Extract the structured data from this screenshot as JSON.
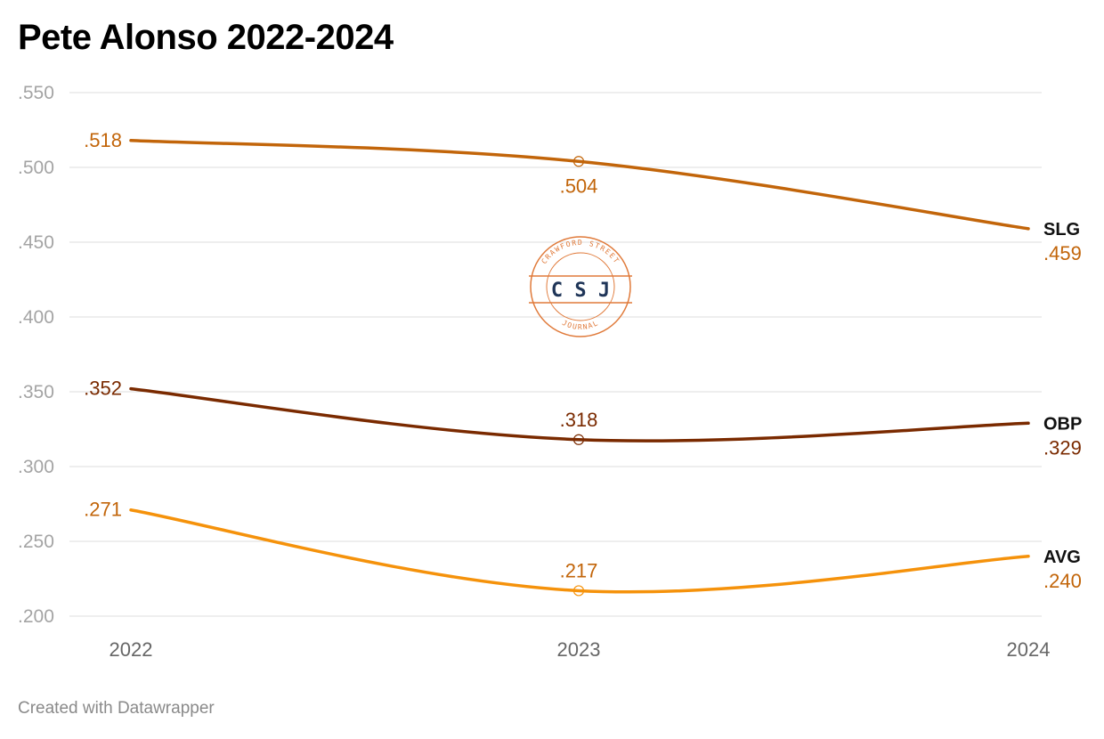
{
  "title": "Pete Alonso 2022-2024",
  "footer": "Created with Datawrapper",
  "watermark": {
    "top_text": "CRAWFORD STREET",
    "center_text": "C S J",
    "bottom_text": "JOURNAL",
    "ring_color": "#e07a3a",
    "text_color": "#1f3558"
  },
  "chart_data": {
    "type": "line",
    "title": "Pete Alonso 2022-2024",
    "x": [
      "2022",
      "2023",
      "2024"
    ],
    "ylim": [
      0.2,
      0.55
    ],
    "yticks": [
      ".550",
      ".500",
      ".450",
      ".400",
      ".350",
      ".300",
      ".250",
      ".200"
    ],
    "ytick_values": [
      0.55,
      0.5,
      0.45,
      0.4,
      0.35,
      0.3,
      0.25,
      0.2
    ],
    "grid": true,
    "legend": "line-end labels at right",
    "series": [
      {
        "name": "SLG",
        "values": [
          0.518,
          0.504,
          0.459
        ],
        "labels": [
          ".518",
          ".504",
          ".459"
        ],
        "color": "#c2650a",
        "label_color": "#c2650a"
      },
      {
        "name": "OBP",
        "values": [
          0.352,
          0.318,
          0.329
        ],
        "labels": [
          ".352",
          ".318",
          ".329"
        ],
        "color": "#7a2a00",
        "label_color": "#7a2a00"
      },
      {
        "name": "AVG",
        "values": [
          0.271,
          0.217,
          0.24
        ],
        "labels": [
          ".271",
          ".217",
          ".240"
        ],
        "color": "#f5920b",
        "label_color": "#c2650a"
      }
    ]
  }
}
